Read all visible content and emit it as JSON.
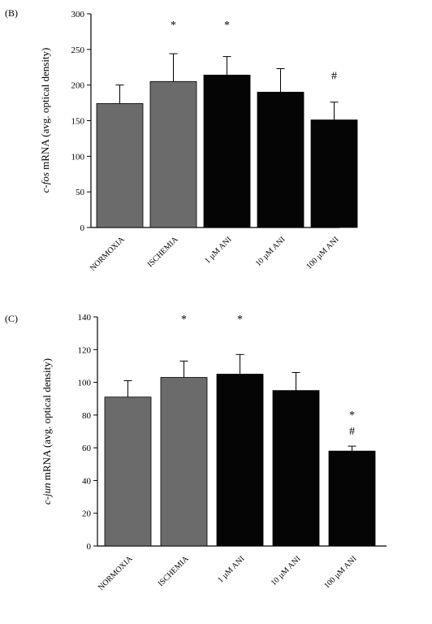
{
  "chart_data": [
    {
      "type": "bar",
      "panel_label": "(B)",
      "categories": [
        "NORMOXIA",
        "ISCHEMIA",
        "1 µM ANI",
        "10 µM ANI",
        "100 µM ANI"
      ],
      "values": [
        174,
        205,
        214,
        190,
        151
      ],
      "errors": [
        26,
        39,
        26,
        33,
        25
      ],
      "ylabel_italic": "c-fos",
      "ylabel_rest": " mRNA  (avg. optical density)",
      "ylim": [
        0,
        300
      ],
      "yticks": [
        0,
        50,
        100,
        150,
        200,
        250,
        300
      ],
      "significance": [
        "",
        "*",
        "*",
        "",
        "#"
      ],
      "bar_colors": [
        "#6b6b6b",
        "#6b6b6b",
        "#050505",
        "#050505",
        "#050505"
      ],
      "grid": false
    },
    {
      "type": "bar",
      "panel_label": "(C)",
      "categories": [
        "NORMOXIA",
        "ISCHEMIA",
        "1 µM ANI",
        "10 µM ANI",
        "100 µM ANI"
      ],
      "values": [
        91,
        103,
        105,
        95,
        58
      ],
      "errors": [
        10,
        10,
        12,
        11,
        3
      ],
      "ylabel_italic": "c-jun",
      "ylabel_rest": " mRNA  (avg. optical density)",
      "ylim": [
        0,
        140
      ],
      "yticks": [
        0,
        20,
        40,
        60,
        80,
        100,
        120,
        140
      ],
      "significance": [
        "",
        "*",
        "*",
        "",
        "*\n#"
      ],
      "bar_colors": [
        "#6b6b6b",
        "#6b6b6b",
        "#050505",
        "#050505",
        "#050505"
      ],
      "grid": false
    }
  ]
}
